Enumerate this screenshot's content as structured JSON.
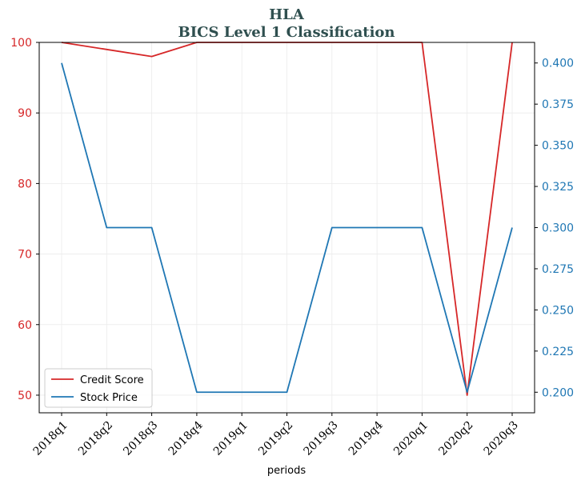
{
  "chart_data": {
    "type": "line",
    "title": "HLA",
    "subtitle": "BICS Level 1 Classification",
    "xlabel": "periods",
    "categories": [
      "2018q1",
      "2018q2",
      "2018q3",
      "2018q4",
      "2019q1",
      "2019q2",
      "2019q3",
      "2019q4",
      "2020q1",
      "2020q2",
      "2020q3"
    ],
    "left_axis": {
      "ylim": [
        47.5,
        100
      ],
      "ticks": [
        50,
        60,
        70,
        80,
        90,
        100
      ],
      "tick_labels": [
        "50",
        "60",
        "70",
        "80",
        "90",
        "100"
      ],
      "color": "#d62728"
    },
    "right_axis": {
      "ylim": [
        0.1875,
        0.4125
      ],
      "ticks": [
        0.2,
        0.225,
        0.25,
        0.275,
        0.3,
        0.325,
        0.35,
        0.375,
        0.4
      ],
      "tick_labels": [
        "0.200",
        "0.225",
        "0.250",
        "0.275",
        "0.300",
        "0.325",
        "0.350",
        "0.375",
        "0.400"
      ],
      "color": "#1f77b4"
    },
    "series": [
      {
        "name": "Credit Score",
        "axis": "left",
        "color": "#d62728",
        "values": [
          100,
          99,
          98,
          100,
          100,
          100,
          100,
          100,
          100,
          50,
          100
        ]
      },
      {
        "name": "Stock Price",
        "axis": "right",
        "color": "#1f77b4",
        "values": [
          0.4,
          0.3,
          0.3,
          0.2,
          0.2,
          0.2,
          0.3,
          0.3,
          0.3,
          0.2,
          0.3
        ]
      }
    ],
    "grid": true,
    "legend": "lower-left"
  }
}
